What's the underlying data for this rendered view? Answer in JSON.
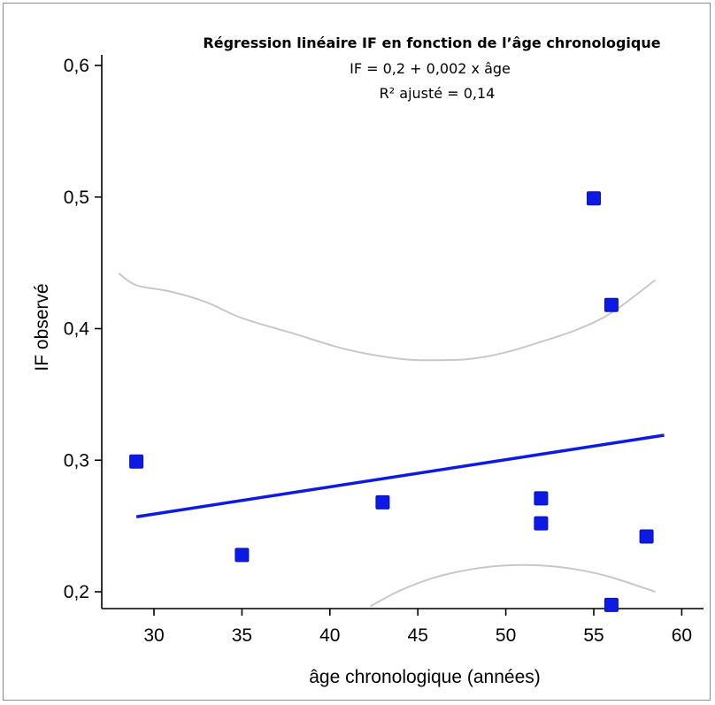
{
  "chart_data": {
    "type": "scatter",
    "title": "Régression linéaire IF en fonction de l’âge chronologique",
    "equation": "IF = 0,2 + 0,002 x âge",
    "r2": "R² ajusté = 0,14",
    "xlabel": "âge chronologique (années)",
    "ylabel": "IF observé",
    "xlim": [
      27,
      62
    ],
    "ylim": [
      0.185,
      0.6
    ],
    "x_ticks": [
      30,
      35,
      40,
      45,
      50,
      55,
      60
    ],
    "x_tick_labels": [
      "30",
      "35",
      "40",
      "45",
      "50",
      "55",
      "60"
    ],
    "y_ticks": [
      0.2,
      0.3,
      0.4,
      0.5,
      0.6
    ],
    "y_tick_labels": [
      "0,2",
      "0,3",
      "0,4",
      "0,5",
      "0,6"
    ],
    "grid": false,
    "points": [
      {
        "x": 29,
        "y": 0.299
      },
      {
        "x": 35,
        "y": 0.228
      },
      {
        "x": 43,
        "y": 0.268
      },
      {
        "x": 52,
        "y": 0.271
      },
      {
        "x": 52,
        "y": 0.252
      },
      {
        "x": 55,
        "y": 0.499
      },
      {
        "x": 56,
        "y": 0.418
      },
      {
        "x": 56,
        "y": 0.19
      },
      {
        "x": 58,
        "y": 0.242
      }
    ],
    "regression_line": {
      "x": [
        29,
        59
      ],
      "y": [
        0.257,
        0.319
      ]
    },
    "confidence_upper": {
      "x": [
        28,
        29,
        31,
        33,
        35,
        38,
        41,
        44,
        46,
        48,
        50,
        52,
        54,
        56,
        58.5
      ],
      "y": [
        0.442,
        0.433,
        0.428,
        0.42,
        0.408,
        0.396,
        0.384,
        0.377,
        0.376,
        0.377,
        0.382,
        0.39,
        0.399,
        0.412,
        0.437
      ]
    },
    "confidence_lower": {
      "x": [
        42.3,
        44,
        46,
        48,
        50,
        52,
        54,
        56,
        58.5
      ],
      "y": [
        0.189,
        0.201,
        0.211,
        0.217,
        0.22,
        0.22,
        0.217,
        0.211,
        0.2
      ]
    },
    "colors": {
      "points": "#0d1ae6",
      "point_stroke": "#0a14b0",
      "regression": "#0d1ae6",
      "confidence": "#c8c8c8",
      "axis": "#000000"
    }
  }
}
